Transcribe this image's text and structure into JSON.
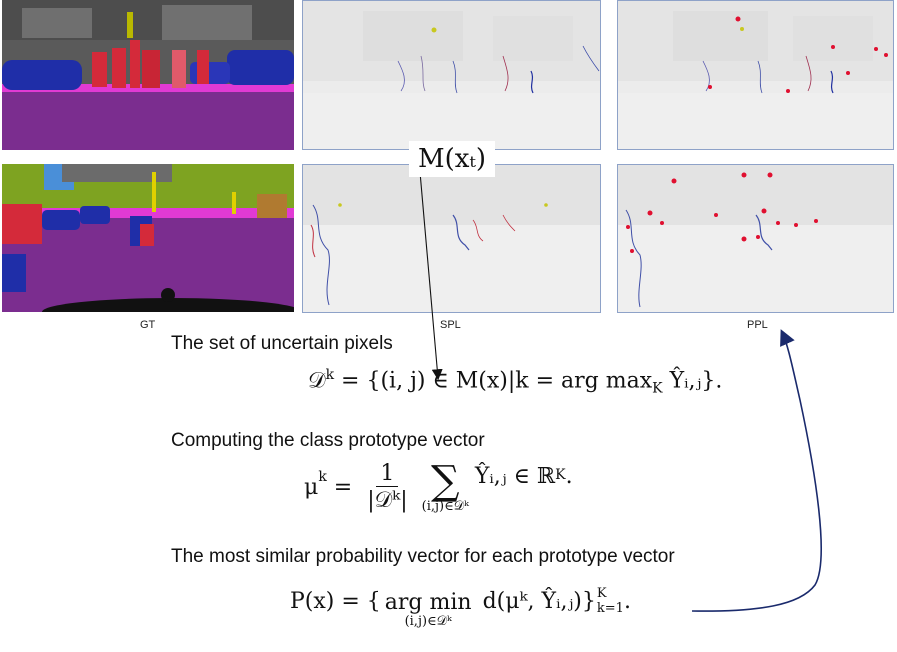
{
  "captions": {
    "gt": "GT",
    "spl": "SPL",
    "ppl": "PPL"
  },
  "callout": {
    "text": "M(xₜ)"
  },
  "sections": {
    "uncertain_title": "The set of uncertain pixels",
    "prototype_title": "Computing the class prototype vector",
    "similar_title": "The most similar probability  vector for each prototype vector"
  },
  "equations": {
    "eq1": {
      "lhs": "𝒟",
      "sup": "k",
      "body": " = {(i, j) ∈ M(x)|k = arg max",
      "sub": "K",
      "tail": " Ŷᵢ,ⱼ}."
    },
    "eq2": {
      "lhs": "μ",
      "sup": "k",
      "eq": " = ",
      "frac_num": "1",
      "frac_den": "|𝒟ᵏ|",
      "sum": "∑",
      "sum_sub": "(i,j)∈𝒟ᵏ",
      "tail": "Ŷᵢ,ⱼ ∈ ℝ",
      "tail_sup": "K",
      "end": "."
    },
    "eq3": {
      "lhs": "P(x) = {",
      "op": "arg min",
      "op_sub": "(i,j)∈𝒟ᵏ",
      "body": " d(μᵏ, Ŷᵢ,ⱼ)}",
      "sup": "K",
      "sub": "k=1",
      "end": "."
    }
  },
  "colors": {
    "road": "#7b2d8f",
    "person": "#d42a3a",
    "car": "#1f2ea8",
    "vegetation": "#7ea321",
    "sidewalk": "#e13ad4",
    "sky": "#4a8fd8",
    "building": "#6b6b6b",
    "arrow": "#1a2a6c",
    "frame": "#8ea2c8"
  }
}
